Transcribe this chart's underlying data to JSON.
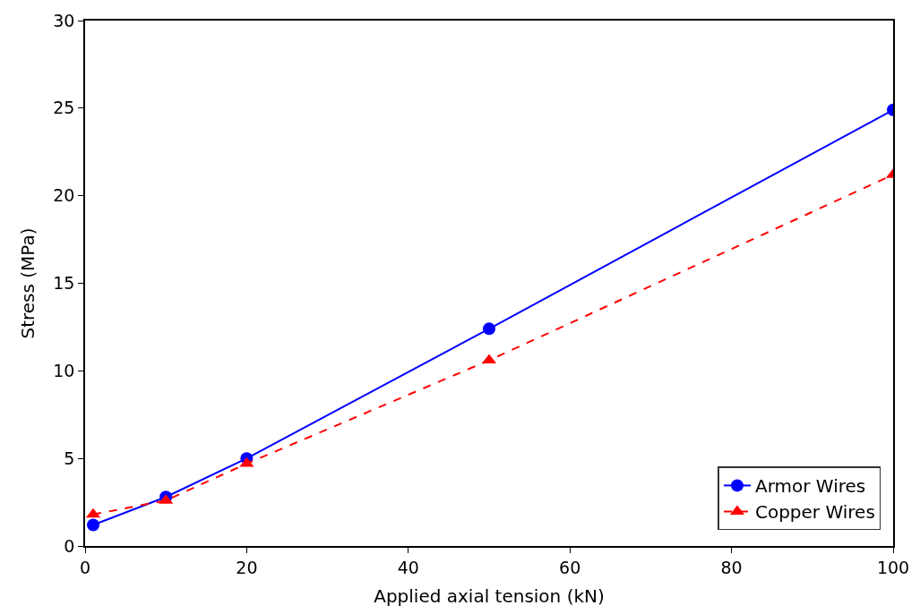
{
  "chart_data": {
    "type": "line",
    "xlabel": "Applied axial tension (kN)",
    "ylabel": "Stress (MPa)",
    "xlim": [
      0,
      100
    ],
    "xticks": [
      0,
      20,
      40,
      60,
      80,
      100
    ],
    "ylim": [
      0,
      30
    ],
    "yticks": [
      0,
      5,
      10,
      15,
      20,
      25,
      30
    ],
    "legend": "bottom right",
    "series": [
      {
        "name": "Armor Wires",
        "color": "#0000ff",
        "x": [
          1,
          10,
          20,
          50,
          100
        ],
        "values": [
          1.2,
          2.8,
          5.0,
          12.4,
          24.9
        ],
        "marker": "circle",
        "line_style": "solid"
      },
      {
        "name": "Copper Wires",
        "color": "#ff0000",
        "x": [
          1,
          10,
          20,
          50,
          100
        ],
        "values": [
          1.8,
          2.6,
          4.7,
          10.6,
          21.2
        ],
        "marker": "triangle",
        "line_style": "dashed"
      }
    ]
  }
}
